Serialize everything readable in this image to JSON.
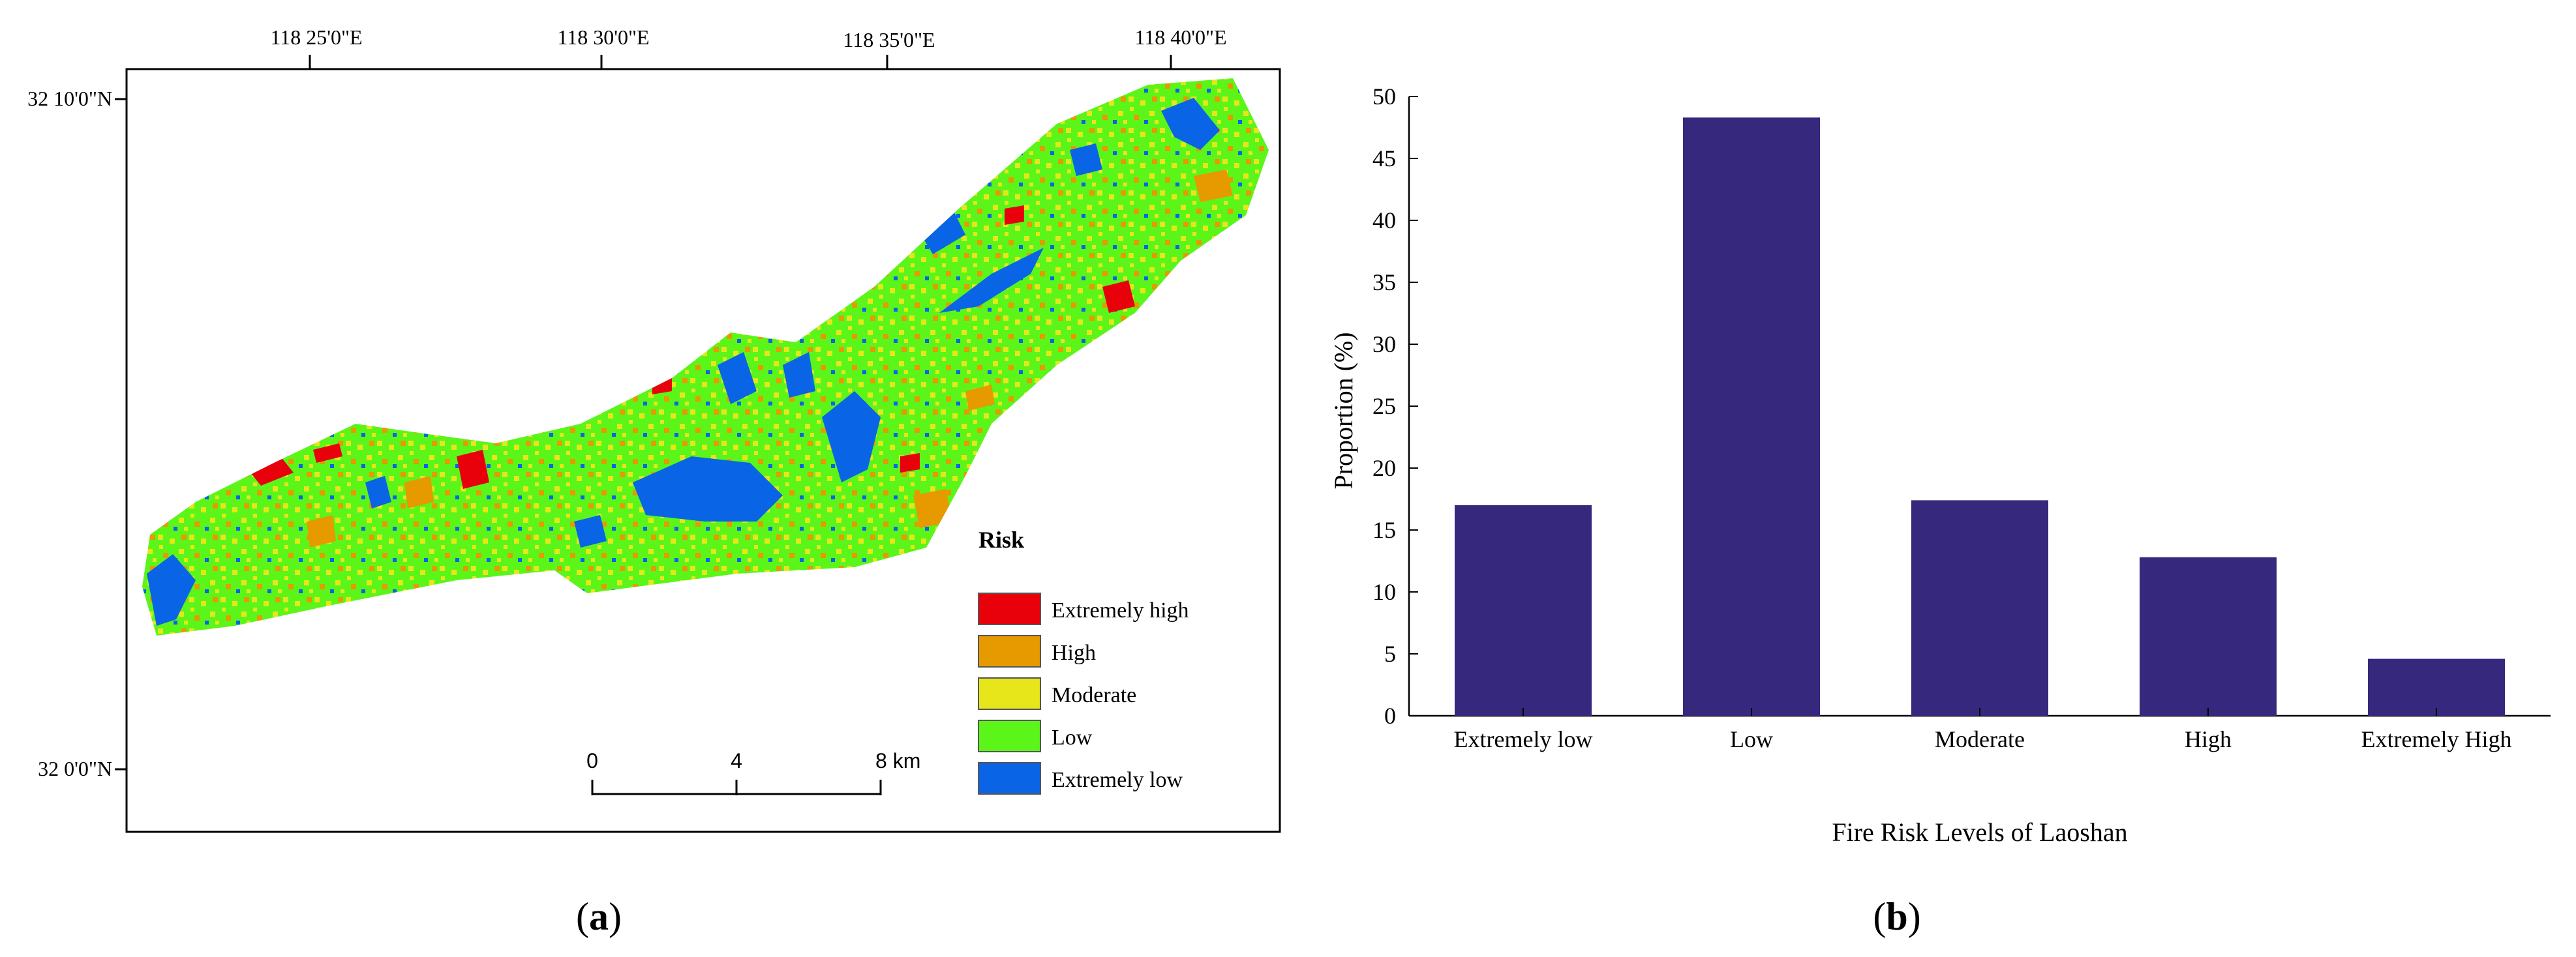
{
  "panel_a": {
    "caption": "a",
    "coordinates": {
      "top_labels": [
        "118 25'0\"E",
        "118 30'0\"E",
        "118 35'0\"E",
        "118 40'0\"E"
      ],
      "left_labels": [
        "32 10'0\"N",
        "32 0'0\"N"
      ]
    },
    "legend": {
      "title": "Risk",
      "items": [
        {
          "label": "Extremely high",
          "color": "#e8000b"
        },
        {
          "label": "High",
          "color": "#e69a00"
        },
        {
          "label": "Moderate",
          "color": "#e6e61a"
        },
        {
          "label": "Low",
          "color": "#5cf51a"
        },
        {
          "label": "Extremely low",
          "color": "#0a64e6"
        }
      ]
    },
    "scale_bar": {
      "ticks": [
        "0",
        "4",
        "8 km"
      ]
    }
  },
  "panel_b": {
    "caption": "b"
  },
  "chart_data": {
    "type": "bar",
    "title": "",
    "xlabel": "Fire Risk  Levels of Laoshan",
    "ylabel": "Proportion (%)",
    "categories": [
      "Extremely low",
      "Low",
      "Moderate",
      "High",
      "Extremely High"
    ],
    "values": [
      17.0,
      48.3,
      17.4,
      12.8,
      4.6
    ],
    "ylim": [
      0,
      50
    ],
    "yticks": [
      "0",
      "5",
      "10",
      "15",
      "20",
      "25",
      "30",
      "35",
      "40",
      "45",
      "50"
    ],
    "bar_color": "#35287d",
    "grid": false
  }
}
